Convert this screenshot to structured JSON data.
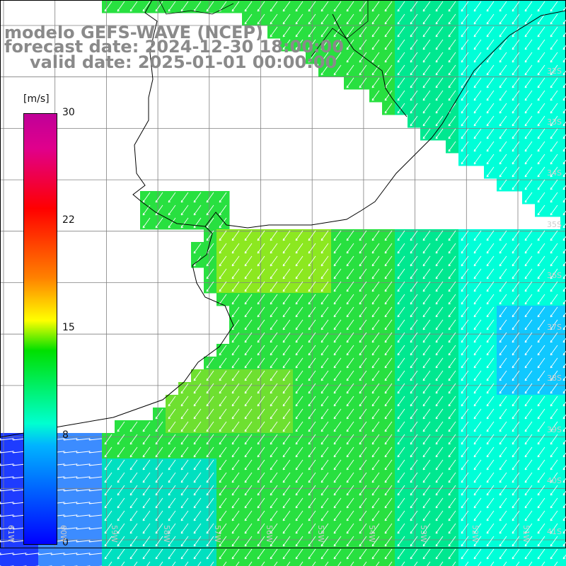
{
  "title": {
    "line1": "modelo GEFS-WAVE (NCEP)",
    "line2": "forecast date: 2024-12-30 18:00:00",
    "line3": "valid date: 2025-01-01 00:00:00"
  },
  "colorbar": {
    "unit": "[m/s]",
    "ticks": [
      "30",
      "22",
      "15",
      "8",
      "0"
    ]
  },
  "lat_labels": [
    "32S",
    "33S",
    "34S",
    "35S",
    "36S",
    "37S",
    "38S",
    "39S",
    "40S",
    "41S"
  ],
  "lon_labels": [
    "61W",
    "60W",
    "59W",
    "58W",
    "57W",
    "56W",
    "55W",
    "54W",
    "53W",
    "52W",
    "51W"
  ],
  "colors": {
    "land": "#ffffff",
    "coast": "#000000",
    "grid": "#808080",
    "arrow": "#ffffff"
  }
}
